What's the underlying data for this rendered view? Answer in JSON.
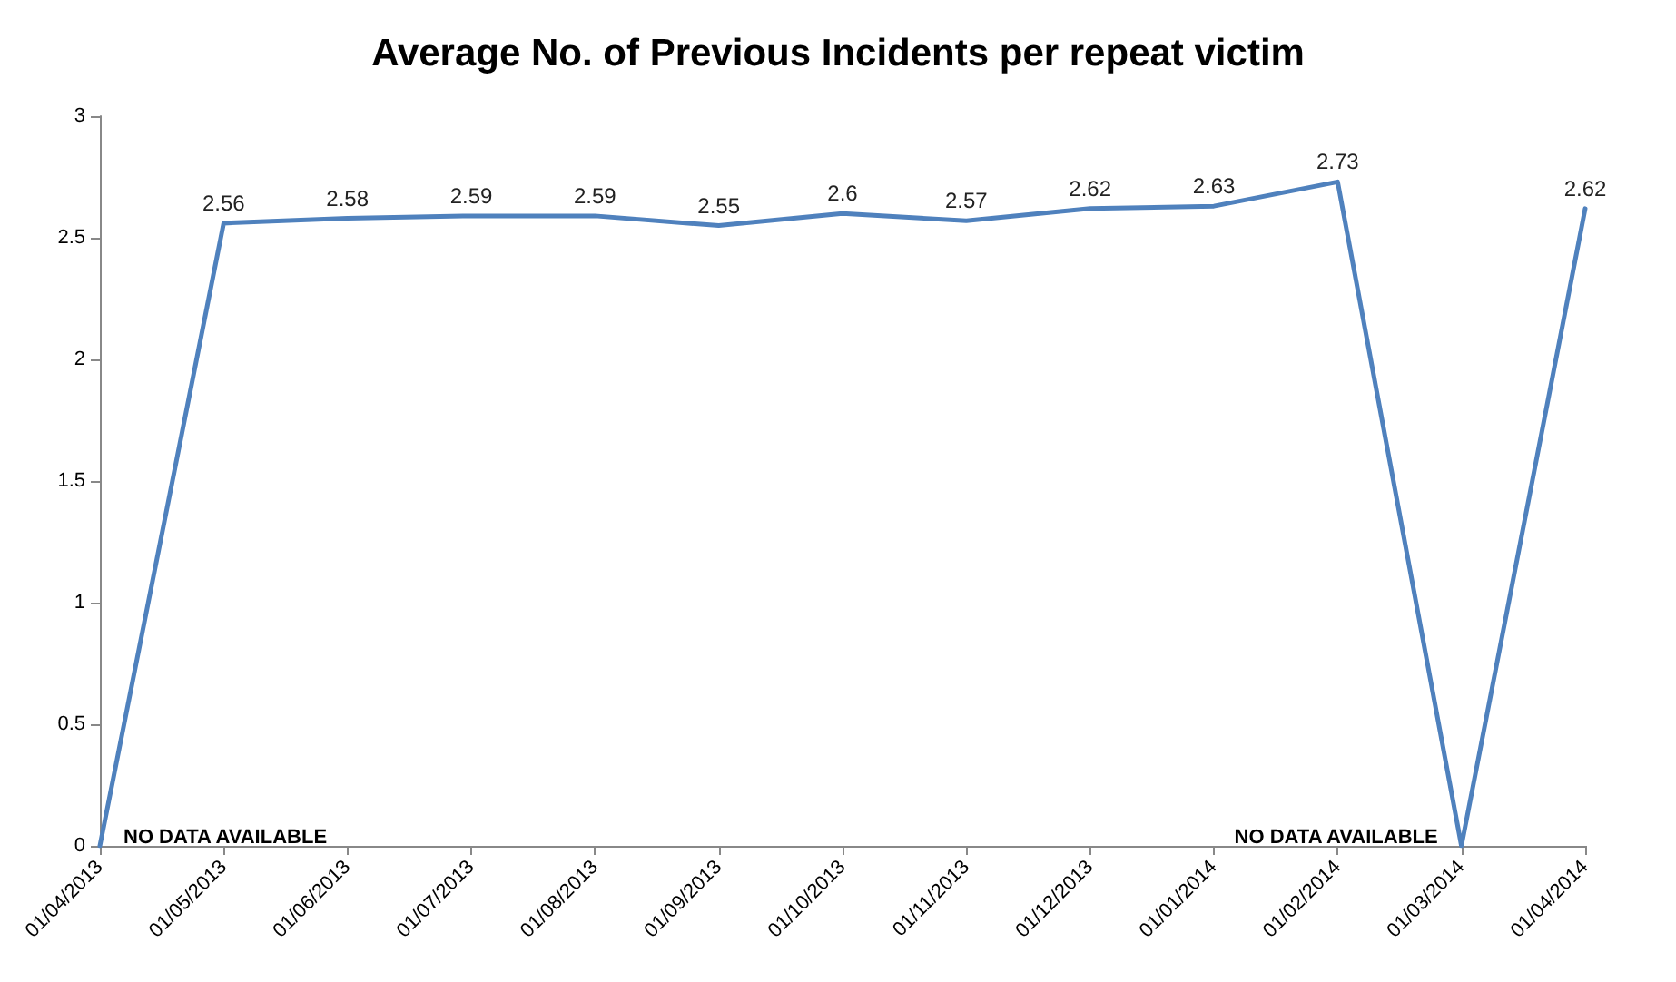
{
  "chart_data": {
    "type": "line",
    "title": "Average No. of Previous Incidents per repeat victim",
    "categories": [
      "01/04/2013",
      "01/05/2013",
      "01/06/2013",
      "01/07/2013",
      "01/08/2013",
      "01/09/2013",
      "01/10/2013",
      "01/11/2013",
      "01/12/2013",
      "01/01/2014",
      "01/02/2014",
      "01/03/2014",
      "01/04/2014"
    ],
    "series": [
      {
        "color": "#4f81bd",
        "values": [
          0,
          2.56,
          2.58,
          2.59,
          2.59,
          2.55,
          2.6,
          2.57,
          2.62,
          2.63,
          2.73,
          0,
          2.62
        ],
        "value_labels": [
          null,
          "2.56",
          "2.58",
          "2.59",
          "2.59",
          "2.55",
          "2.6",
          "2.57",
          "2.62",
          "2.63",
          "2.73",
          null,
          "2.62"
        ]
      }
    ],
    "ylim": [
      0,
      3
    ],
    "yticks": [
      0,
      0.5,
      1,
      1.5,
      2,
      2.5,
      3
    ],
    "grid": false,
    "marker": "none",
    "line_style": "solid",
    "annotations": [
      {
        "text": "NO DATA AVAILABLE",
        "x": "01/04/2013",
        "y": 0
      },
      {
        "text": "NO DATA AVAILABLE",
        "x": "01/03/2014",
        "y": 0
      }
    ]
  }
}
